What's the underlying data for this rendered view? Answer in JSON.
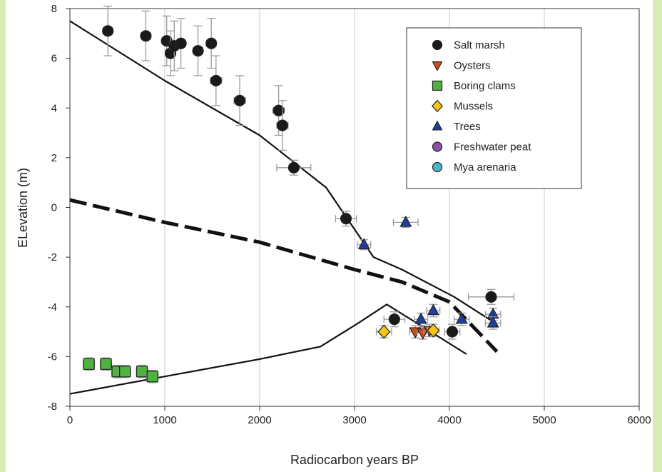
{
  "chart_data": {
    "type": "scatter",
    "title": "",
    "xlabel": "Radiocarbon years BP",
    "ylabel": "ELevation (m)",
    "xlim": [
      0,
      6000
    ],
    "ylim": [
      -8,
      8
    ],
    "xticks": [
      "0",
      "1000",
      "2000",
      "3000",
      "4000",
      "5000",
      "6000"
    ],
    "yticks": [
      "-8",
      "-6",
      "-4",
      "-2",
      "0",
      "2",
      "4",
      "6",
      "8"
    ],
    "grid": "vertical",
    "legend_position": "top-right",
    "series": [
      {
        "name": "Salt marsh",
        "marker": "circle",
        "color": "#1a1a1a",
        "points": [
          {
            "x": 400,
            "y": 7.1,
            "xerr": 50,
            "yerr": 1.0
          },
          {
            "x": 800,
            "y": 6.9,
            "xerr": 50,
            "yerr": 1.0
          },
          {
            "x": 1020,
            "y": 6.7,
            "xerr": 50,
            "yerr": 1.0
          },
          {
            "x": 1060,
            "y": 6.2,
            "xerr": 50,
            "yerr": 0.9
          },
          {
            "x": 1100,
            "y": 6.5,
            "xerr": 50,
            "yerr": 1.0
          },
          {
            "x": 1170,
            "y": 6.6,
            "xerr": 50,
            "yerr": 1.0
          },
          {
            "x": 1350,
            "y": 6.3,
            "xerr": 50,
            "yerr": 1.0
          },
          {
            "x": 1490,
            "y": 6.6,
            "xerr": 50,
            "yerr": 1.0
          },
          {
            "x": 1540,
            "y": 5.1,
            "xerr": 60,
            "yerr": 1.0
          },
          {
            "x": 1790,
            "y": 4.3,
            "xerr": 60,
            "yerr": 1.0
          },
          {
            "x": 2200,
            "y": 3.9,
            "xerr": 60,
            "yerr": 1.0
          },
          {
            "x": 2240,
            "y": 3.3,
            "xerr": 60,
            "yerr": 1.0
          },
          {
            "x": 2360,
            "y": 1.6,
            "xerr": 180,
            "yerr": 0.3
          },
          {
            "x": 2910,
            "y": -0.45,
            "xerr": 110,
            "yerr": 0.3
          },
          {
            "x": 3420,
            "y": -4.5,
            "xerr": 110,
            "yerr": 0.3
          },
          {
            "x": 4030,
            "y": -5.0,
            "xerr": 80,
            "yerr": 0.3
          },
          {
            "x": 4440,
            "y": -3.6,
            "xerr": 240,
            "yerr": 0.3
          }
        ]
      },
      {
        "name": "Oysters",
        "marker": "triangle-down",
        "color": "#d24a1a",
        "points": [
          {
            "x": 3640,
            "y": -5.0,
            "xerr": 60,
            "yerr": 0.25
          },
          {
            "x": 3720,
            "y": -5.05,
            "xerr": 60,
            "yerr": 0.25
          },
          {
            "x": 3790,
            "y": -4.95,
            "xerr": 60,
            "yerr": 0.25
          }
        ]
      },
      {
        "name": "Boring clams",
        "marker": "square",
        "color": "#4fb33f",
        "points": [
          {
            "x": 200,
            "y": -6.3,
            "xerr": 60,
            "yerr": 0.25
          },
          {
            "x": 380,
            "y": -6.3,
            "xerr": 60,
            "yerr": 0.25
          },
          {
            "x": 500,
            "y": -6.6,
            "xerr": 60,
            "yerr": 0.25
          },
          {
            "x": 580,
            "y": -6.6,
            "xerr": 60,
            "yerr": 0.25
          },
          {
            "x": 760,
            "y": -6.6,
            "xerr": 60,
            "yerr": 0.25
          },
          {
            "x": 870,
            "y": -6.8,
            "xerr": 60,
            "yerr": 0.25
          }
        ]
      },
      {
        "name": "Mussels",
        "marker": "diamond",
        "color": "#f5c518",
        "points": [
          {
            "x": 3310,
            "y": -5.0,
            "xerr": 80,
            "yerr": 0.25
          },
          {
            "x": 3830,
            "y": -4.95,
            "xerr": 60,
            "yerr": 0.25
          }
        ]
      },
      {
        "name": "Trees",
        "marker": "triangle-up",
        "color": "#1f3f9f",
        "points": [
          {
            "x": 3540,
            "y": -0.6,
            "xerr": 130,
            "yerr": 0.2
          },
          {
            "x": 3100,
            "y": -1.5,
            "xerr": 70,
            "yerr": 0.2
          },
          {
            "x": 3700,
            "y": -4.5,
            "xerr": 70,
            "yerr": 0.25
          },
          {
            "x": 3830,
            "y": -4.15,
            "xerr": 70,
            "yerr": 0.25
          },
          {
            "x": 4130,
            "y": -4.5,
            "xerr": 80,
            "yerr": 0.25
          },
          {
            "x": 4460,
            "y": -4.3,
            "xerr": 80,
            "yerr": 0.25
          },
          {
            "x": 4460,
            "y": -4.65,
            "xerr": 80,
            "yerr": 0.25
          }
        ]
      },
      {
        "name": "Freshwater peat",
        "marker": "circle",
        "color": "#8a4fa8",
        "points": []
      },
      {
        "name": "Mya arenaria",
        "marker": "circle",
        "color": "#4ab8c8",
        "points": []
      }
    ],
    "lines": [
      {
        "style": "solid",
        "width": "thin",
        "color": "#111111",
        "points": [
          [
            0,
            7.5
          ],
          [
            1000,
            5.1
          ],
          [
            2000,
            2.9
          ],
          [
            2700,
            0.8
          ],
          [
            3200,
            -2.0
          ],
          [
            3500,
            -2.5
          ],
          [
            4050,
            -3.6
          ],
          [
            4460,
            -4.6
          ]
        ]
      },
      {
        "style": "dashed",
        "width": "thick",
        "color": "#111111",
        "points": [
          [
            0,
            0.3
          ],
          [
            1000,
            -0.6
          ],
          [
            2000,
            -1.4
          ],
          [
            3000,
            -2.5
          ],
          [
            3500,
            -3.0
          ],
          [
            4000,
            -3.8
          ],
          [
            4500,
            -5.8
          ]
        ]
      },
      {
        "style": "solid",
        "width": "thin",
        "color": "#111111",
        "points": [
          [
            0,
            -7.5
          ],
          [
            1000,
            -6.8
          ],
          [
            2000,
            -6.1
          ],
          [
            2640,
            -5.6
          ],
          [
            3020,
            -4.7
          ],
          [
            3340,
            -3.9
          ],
          [
            3760,
            -4.9
          ],
          [
            4180,
            -5.9
          ]
        ]
      }
    ]
  }
}
